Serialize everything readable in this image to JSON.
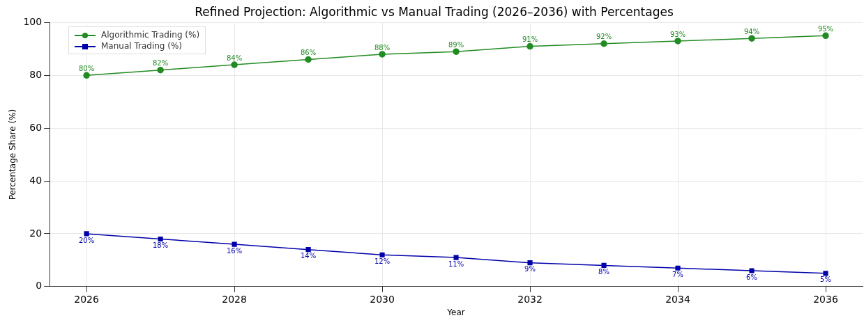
{
  "chart_data": {
    "type": "line",
    "title": "Refined Projection: Algorithmic vs Manual Trading (2026–2036) with Percentages",
    "xlabel": "Year",
    "ylabel": "Percentage Share (%)",
    "x": [
      2026,
      2027,
      2028,
      2029,
      2030,
      2031,
      2032,
      2033,
      2034,
      2035,
      2036
    ],
    "series": [
      {
        "name": "Algorithmic Trading (%)",
        "color": "#228b22",
        "marker": "circle",
        "values": [
          80,
          82,
          84,
          86,
          88,
          89,
          91,
          92,
          93,
          94,
          95
        ],
        "value_labels": [
          "80%",
          "82%",
          "84%",
          "86%",
          "88%",
          "89%",
          "91%",
          "92%",
          "93%",
          "94%",
          "95%"
        ]
      },
      {
        "name": "Manual Trading (%)",
        "color": "#0000aa",
        "marker": "square",
        "values": [
          20,
          18,
          16,
          14,
          12,
          11,
          9,
          8,
          7,
          6,
          5
        ],
        "value_labels": [
          "20%",
          "18%",
          "16%",
          "14%",
          "12%",
          "11%",
          "9%",
          "8%",
          "7%",
          "6%",
          "5%"
        ]
      }
    ],
    "xlim": [
      2025.5,
      2036.5
    ],
    "xticks": [
      2026,
      2028,
      2030,
      2032,
      2034,
      2036
    ],
    "ylim": [
      0,
      100
    ],
    "yticks": [
      0,
      20,
      40,
      60,
      80,
      100
    ],
    "grid": true,
    "legend": "top left"
  }
}
